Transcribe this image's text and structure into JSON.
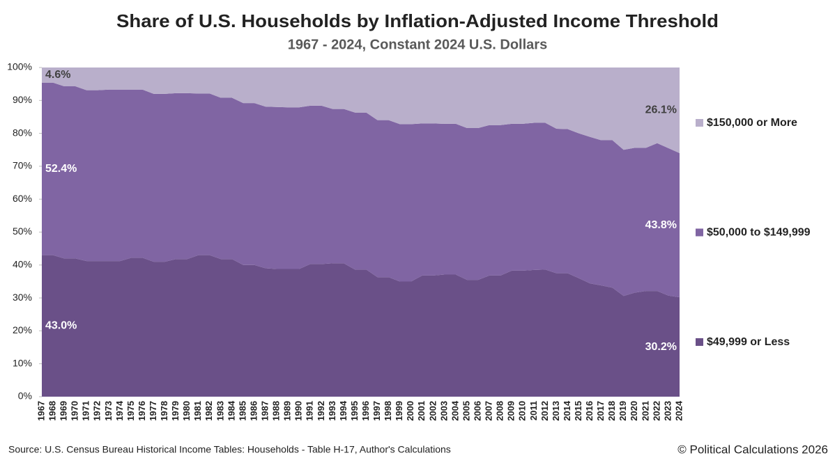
{
  "chart_data": {
    "type": "stacked-area",
    "title": "Share of U.S. Households by Inflation-Adjusted Income Threshold",
    "subtitle": "1967 - 2024, Constant 2024 U.S. Dollars",
    "source": "Source: U.S. Census Bureau Historical Income Tables: Households - Table H-17, Author's Calculations",
    "credit": "© Political Calculations 2026",
    "categories": [
      "1967",
      "1968",
      "1969",
      "1970",
      "1971",
      "1972",
      "1973",
      "1974",
      "1975",
      "1976",
      "1977",
      "1978",
      "1979",
      "1980",
      "1981",
      "1982",
      "1983",
      "1984",
      "1985",
      "1986",
      "1987",
      "1988",
      "1989",
      "1990",
      "1991",
      "1992",
      "1993",
      "1994",
      "1995",
      "1996",
      "1997",
      "1998",
      "1999",
      "2000",
      "2001",
      "2002",
      "2003",
      "2004",
      "2005",
      "2006",
      "2007",
      "2008",
      "2009",
      "2010",
      "2011",
      "2012",
      "2013",
      "2014",
      "2015",
      "2016",
      "2017",
      "2018",
      "2019",
      "2020",
      "2021",
      "2022",
      "2023",
      "2024"
    ],
    "series": [
      {
        "name": "$49,999 or Less",
        "color": "#6a5088",
        "values": [
          43.0,
          43.0,
          42.0,
          42.0,
          41.2,
          41.2,
          41.2,
          41.2,
          42.2,
          42.2,
          41.0,
          41.0,
          41.8,
          41.8,
          43.0,
          43.0,
          41.8,
          41.8,
          40.0,
          40.0,
          39.0,
          38.8,
          38.8,
          38.8,
          40.3,
          40.3,
          40.5,
          40.5,
          38.6,
          38.6,
          36.3,
          36.3,
          35.0,
          35.0,
          36.8,
          36.8,
          37.1,
          37.1,
          35.5,
          35.5,
          36.8,
          36.8,
          38.3,
          38.3,
          38.5,
          38.6,
          37.5,
          37.5,
          36.0,
          34.4,
          33.8,
          33.1,
          30.6,
          31.6,
          32.1,
          32.1,
          30.7,
          30.2
        ],
        "value_labels": [
          "43.0%",
          null,
          null,
          null,
          null,
          null,
          null,
          null,
          null,
          null,
          null,
          null,
          null,
          null,
          null,
          null,
          null,
          null,
          null,
          null,
          null,
          null,
          null,
          null,
          null,
          null,
          null,
          null,
          null,
          null,
          null,
          null,
          null,
          null,
          null,
          null,
          null,
          null,
          null,
          null,
          null,
          null,
          null,
          null,
          null,
          null,
          null,
          null,
          null,
          null,
          null,
          null,
          null,
          null,
          null,
          null,
          null,
          "30.2%"
        ]
      },
      {
        "name": "$50,000 to $149,999",
        "color": "#8065a3",
        "values": [
          52.4,
          52.4,
          52.3,
          52.3,
          51.9,
          51.9,
          52.1,
          52.1,
          51.1,
          51.1,
          51.0,
          51.0,
          50.4,
          50.4,
          49.1,
          49.1,
          49.0,
          49.0,
          49.2,
          49.2,
          49.1,
          49.2,
          49.1,
          49.1,
          48.1,
          48.1,
          46.9,
          46.9,
          47.7,
          47.7,
          47.7,
          47.7,
          47.8,
          47.8,
          46.2,
          46.2,
          45.8,
          45.8,
          46.1,
          46.1,
          45.7,
          45.7,
          44.6,
          44.6,
          44.7,
          44.6,
          43.9,
          43.8,
          44.0,
          44.5,
          44.1,
          44.8,
          44.4,
          44.0,
          43.5,
          44.9,
          44.8,
          43.8
        ],
        "value_labels": [
          "52.4%",
          null,
          null,
          null,
          null,
          null,
          null,
          null,
          null,
          null,
          null,
          null,
          null,
          null,
          null,
          null,
          null,
          null,
          null,
          null,
          null,
          null,
          null,
          null,
          null,
          null,
          null,
          null,
          null,
          null,
          null,
          null,
          null,
          null,
          null,
          null,
          null,
          null,
          null,
          null,
          null,
          null,
          null,
          null,
          null,
          null,
          null,
          null,
          null,
          null,
          null,
          null,
          null,
          null,
          null,
          null,
          null,
          "43.8%"
        ]
      },
      {
        "name": "$150,000 or More",
        "color": "#b9afcb",
        "values": [
          4.6,
          4.6,
          5.7,
          5.7,
          6.9,
          6.9,
          6.7,
          6.7,
          6.7,
          6.7,
          8.0,
          8.0,
          7.8,
          7.8,
          7.9,
          7.9,
          9.2,
          9.2,
          10.8,
          10.8,
          11.9,
          12.0,
          12.1,
          12.1,
          11.6,
          11.6,
          12.6,
          12.6,
          13.7,
          13.7,
          16.0,
          16.0,
          17.2,
          17.2,
          17.0,
          17.0,
          17.1,
          17.1,
          18.4,
          18.4,
          17.5,
          17.5,
          17.1,
          17.1,
          16.8,
          16.8,
          18.6,
          18.7,
          20.0,
          21.1,
          22.1,
          22.1,
          25.0,
          24.4,
          24.4,
          23.0,
          24.5,
          26.1
        ],
        "value_labels": [
          "4.6%",
          null,
          null,
          null,
          null,
          null,
          null,
          null,
          null,
          null,
          null,
          null,
          null,
          null,
          null,
          null,
          null,
          null,
          null,
          null,
          null,
          null,
          null,
          null,
          null,
          null,
          null,
          null,
          null,
          null,
          null,
          null,
          null,
          null,
          null,
          null,
          null,
          null,
          null,
          null,
          null,
          null,
          null,
          null,
          null,
          null,
          null,
          null,
          null,
          null,
          null,
          null,
          null,
          null,
          null,
          null,
          null,
          "26.1%"
        ]
      }
    ],
    "ylim": [
      0,
      100
    ],
    "yticks": [
      {
        "value": 0,
        "label": "0%"
      },
      {
        "value": 10,
        "label": "10%"
      },
      {
        "value": 20,
        "label": "20%"
      },
      {
        "value": 30,
        "label": "30%"
      },
      {
        "value": 40,
        "label": "40%"
      },
      {
        "value": 50,
        "label": "50%"
      },
      {
        "value": 60,
        "label": "60%"
      },
      {
        "value": 70,
        "label": "70%"
      },
      {
        "value": 80,
        "label": "80%"
      },
      {
        "value": 90,
        "label": "90%"
      },
      {
        "value": 100,
        "label": "100%"
      }
    ],
    "grid": false,
    "legend": "right"
  }
}
